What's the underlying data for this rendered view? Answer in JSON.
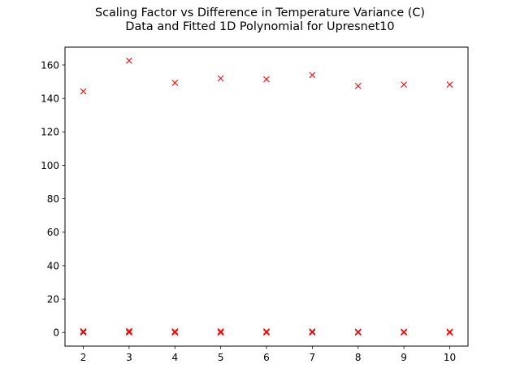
{
  "chart_data": {
    "type": "scatter",
    "title_lines": [
      "Scaling Factor vs Difference in Temperature Variance (C)",
      "Data and Fitted 1D Polynomial for Upresnet10"
    ],
    "xlabel": "",
    "ylabel": "",
    "xlim": [
      1.6,
      10.4
    ],
    "ylim": [
      -8.13,
      170.7
    ],
    "x_ticks": [
      2,
      3,
      4,
      5,
      6,
      7,
      8,
      9,
      10
    ],
    "y_ticks": [
      0,
      20,
      40,
      60,
      80,
      100,
      120,
      140,
      160
    ],
    "grid": false,
    "legend": "none",
    "marker": "x",
    "marker_color": "#ff0000",
    "series": [
      {
        "x": [
          2,
          3,
          4,
          5,
          6,
          7,
          8,
          9,
          10
        ],
        "y": [
          144.3,
          162.6,
          149.3,
          152.0,
          151.5,
          154.0,
          147.5,
          148.3,
          148.3
        ]
      },
      {
        "x": [
          2,
          2,
          2,
          3,
          3,
          3,
          4,
          4,
          4,
          5,
          5,
          5,
          6,
          6,
          6,
          7,
          7,
          7,
          8,
          8,
          8,
          9,
          9,
          9,
          10,
          10,
          10
        ],
        "y": [
          0.0,
          0.4,
          0.8,
          0.0,
          0.4,
          0.9,
          0.0,
          0.3,
          0.7,
          0.0,
          0.3,
          0.7,
          0.0,
          0.3,
          0.7,
          0.0,
          0.3,
          0.7,
          0.0,
          0.2,
          0.5,
          0.0,
          0.2,
          0.5,
          0.0,
          0.2,
          0.5
        ]
      }
    ]
  }
}
